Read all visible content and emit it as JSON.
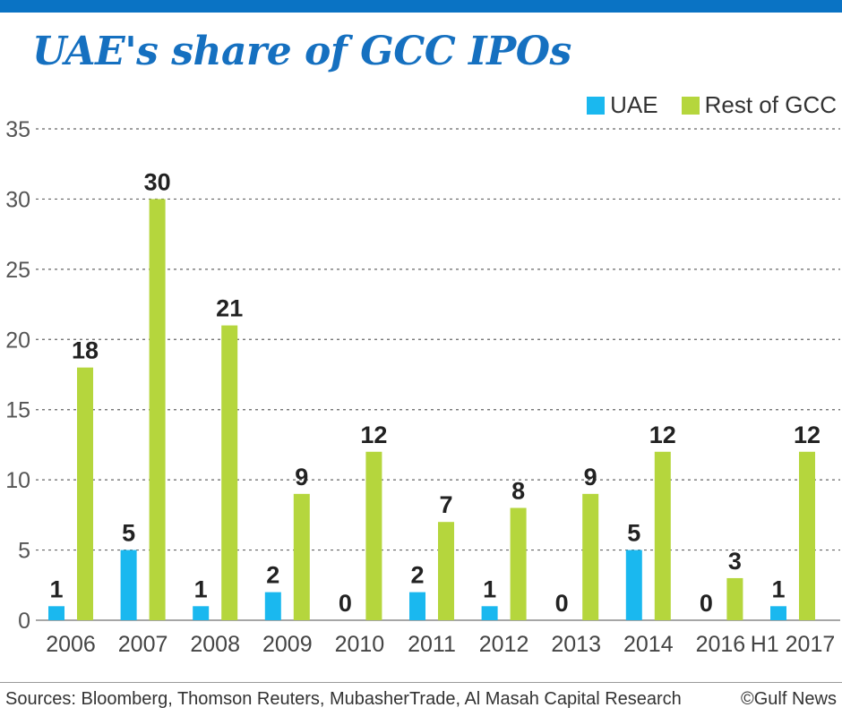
{
  "title": "UAE's share of GCC IPOs",
  "legend": [
    {
      "label": "UAE",
      "color": "#1ab8ef"
    },
    {
      "label": "Rest of GCC",
      "color": "#b5d63d"
    }
  ],
  "footer": {
    "sources": "Sources: Bloomberg, Thomson Reuters, MubasherTrade, Al Masah Capital Research",
    "credit": "©Gulf News"
  },
  "chart_data": {
    "type": "bar",
    "categories": [
      "2006",
      "2007",
      "2008",
      "2009",
      "2010",
      "2011",
      "2012",
      "2013",
      "2014",
      "2016",
      "H1 2017"
    ],
    "series": [
      {
        "name": "UAE",
        "color": "#1ab8ef",
        "values": [
          1,
          5,
          1,
          2,
          0,
          2,
          1,
          0,
          5,
          0,
          1
        ]
      },
      {
        "name": "Rest of GCC",
        "color": "#b5d63d",
        "values": [
          18,
          30,
          21,
          9,
          12,
          7,
          8,
          9,
          12,
          3,
          12
        ]
      }
    ],
    "yticks": [
      0,
      5,
      10,
      15,
      20,
      25,
      30,
      35
    ],
    "ylim": [
      0,
      35
    ],
    "grid": true,
    "legend_position": "top-right"
  }
}
